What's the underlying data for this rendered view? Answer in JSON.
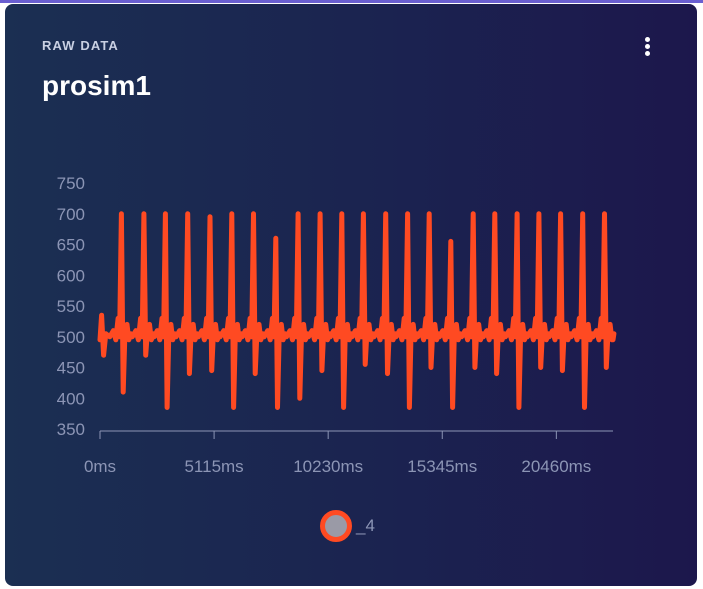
{
  "card": {
    "eyebrow": "RAW DATA",
    "title": "prosim1"
  },
  "colors": {
    "series": "#ff4a22",
    "axis": "#8c95b5",
    "legend_fill": "#9a9aa6"
  },
  "icons": {
    "menu": "vertical-dots-icon"
  },
  "chart_data": {
    "type": "line",
    "title": "",
    "xlabel": "",
    "ylabel": "",
    "xlim": [
      0,
      23000
    ],
    "ylim": [
      350,
      750
    ],
    "x_ticks": [
      0,
      5115,
      10230,
      15345,
      20460
    ],
    "x_tick_labels": [
      "0ms",
      "5115ms",
      "10230ms",
      "15345ms",
      "20460ms"
    ],
    "y_ticks": [
      350,
      400,
      450,
      500,
      550,
      600,
      650,
      700,
      750
    ],
    "grid": false,
    "legend": "bottom-center",
    "series": [
      {
        "name": "_4",
        "color": "#ff4a22",
        "beats": [
          {
            "t": 960,
            "peak": 700,
            "trough": 410
          },
          {
            "t": 1970,
            "peak": 700,
            "trough": 470
          },
          {
            "t": 2930,
            "peak": 700,
            "trough": 385
          },
          {
            "t": 3930,
            "peak": 700,
            "trough": 440
          },
          {
            "t": 4930,
            "peak": 695,
            "trough": 445
          },
          {
            "t": 5910,
            "peak": 700,
            "trough": 385
          },
          {
            "t": 6880,
            "peak": 700,
            "trough": 440
          },
          {
            "t": 7880,
            "peak": 660,
            "trough": 385
          },
          {
            "t": 8880,
            "peak": 700,
            "trough": 400
          },
          {
            "t": 9870,
            "peak": 700,
            "trough": 445
          },
          {
            "t": 10840,
            "peak": 700,
            "trough": 385
          },
          {
            "t": 11810,
            "peak": 700,
            "trough": 455
          },
          {
            "t": 12810,
            "peak": 700,
            "trough": 440
          },
          {
            "t": 13790,
            "peak": 700,
            "trough": 385
          },
          {
            "t": 14760,
            "peak": 700,
            "trough": 450
          },
          {
            "t": 15730,
            "peak": 655,
            "trough": 385
          },
          {
            "t": 16730,
            "peak": 700,
            "trough": 450
          },
          {
            "t": 17700,
            "peak": 700,
            "trough": 440
          },
          {
            "t": 18700,
            "peak": 700,
            "trough": 385
          },
          {
            "t": 19680,
            "peak": 700,
            "trough": 450
          },
          {
            "t": 20650,
            "peak": 700,
            "trough": 445
          },
          {
            "t": 21640,
            "peak": 700,
            "trough": 385
          },
          {
            "t": 22620,
            "peak": 700,
            "trough": 450
          }
        ]
      }
    ]
  }
}
